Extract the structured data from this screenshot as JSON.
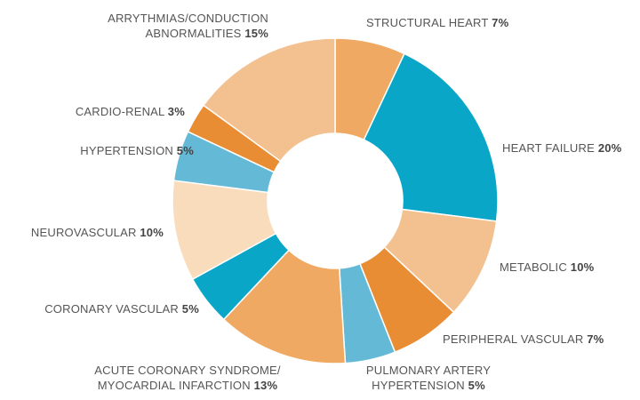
{
  "chart_data": {
    "type": "pie",
    "categories": [
      "STRUCTURAL HEART",
      "HEART FAILURE",
      "METABOLIC",
      "PERIPHERAL VASCULAR",
      "PULMONARY ARTERY\nHYPERTENSION",
      "ACUTE CORONARY SYNDROME/\nMYOCARDIAL INFARCTION",
      "CORONARY VASCULAR",
      "NEUROVASCULAR",
      "HYPERTENSION",
      "CARDIO-RENAL",
      "ARRYTHMIAS/CONDUCTION\nABNORMALITIES"
    ],
    "values": [
      7,
      20,
      10,
      7,
      5,
      13,
      5,
      10,
      5,
      3,
      15
    ],
    "value_labels": [
      "7%",
      "20%",
      "10%",
      "7%",
      "5%",
      "13%",
      "5%",
      "10%",
      "5%",
      "3%",
      "15%"
    ],
    "colors": [
      "#f0a962",
      "#0aa6c8",
      "#f3c08f",
      "#e98d35",
      "#64bad6",
      "#f0a962",
      "#0aa6c8",
      "#f9dcbc",
      "#64bad6",
      "#e98d35",
      "#f3c08f"
    ]
  }
}
